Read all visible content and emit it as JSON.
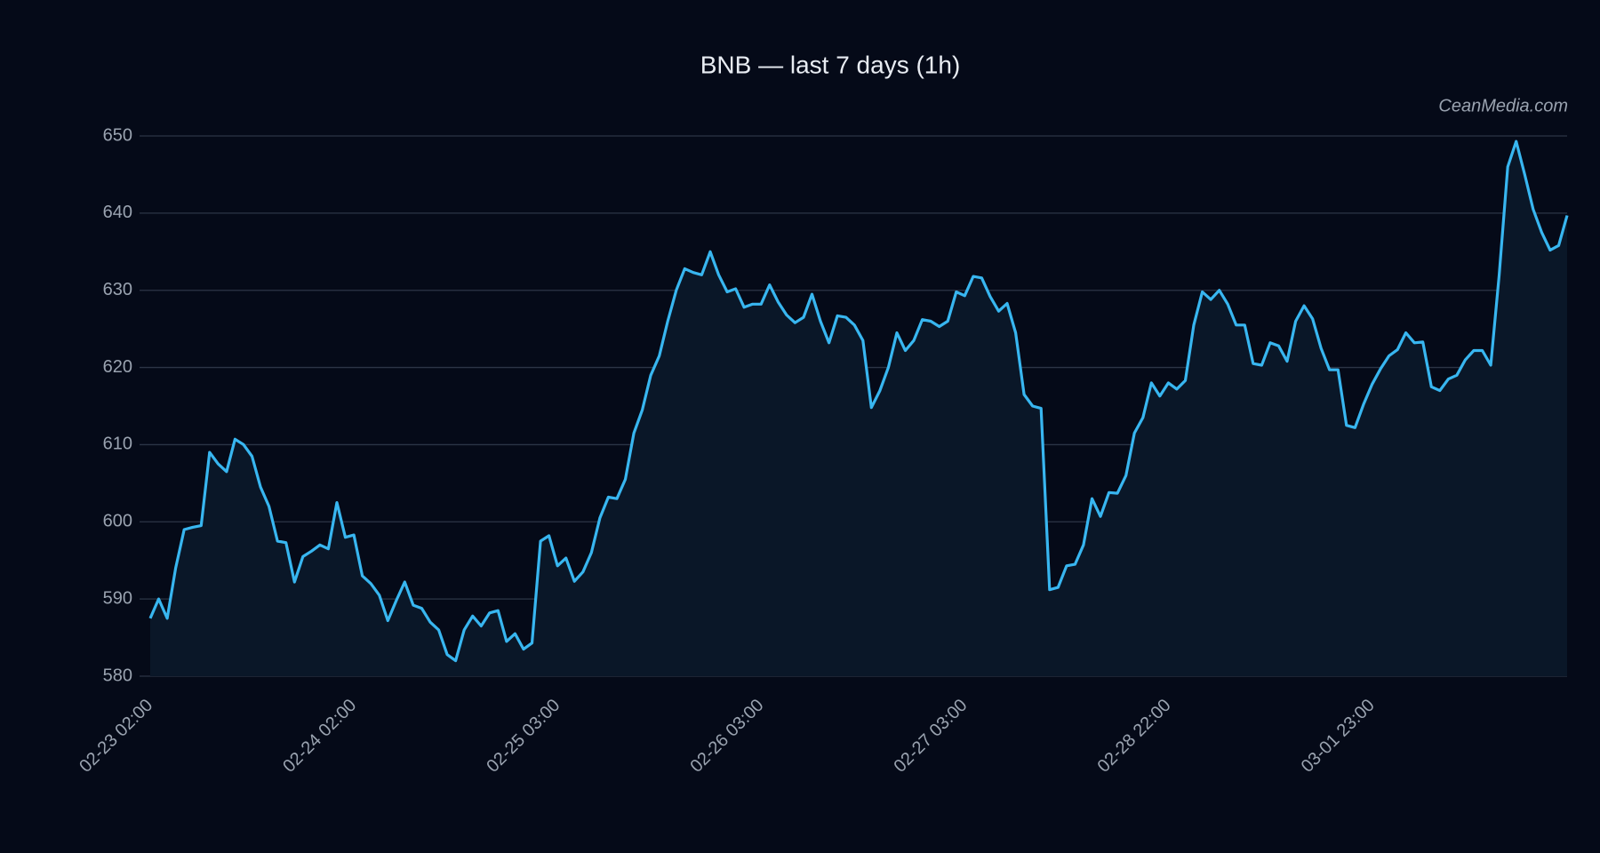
{
  "chart_data": {
    "type": "line",
    "title": "BNB — last 7 days (1h)",
    "watermark": "CeanMedia.com",
    "categories": [
      "02-23 02:00",
      null,
      null,
      null,
      null,
      null,
      null,
      null,
      null,
      null,
      null,
      null,
      null,
      null,
      null,
      null,
      null,
      null,
      null,
      null,
      null,
      null,
      null,
      null,
      "02-24 02:00",
      null,
      null,
      null,
      null,
      null,
      null,
      null,
      null,
      null,
      null,
      null,
      null,
      null,
      null,
      null,
      null,
      null,
      null,
      null,
      null,
      null,
      null,
      null,
      "02-25 03:00",
      null,
      null,
      null,
      null,
      null,
      null,
      null,
      null,
      null,
      null,
      null,
      null,
      null,
      null,
      null,
      null,
      null,
      null,
      null,
      null,
      null,
      null,
      null,
      "02-26 03:00",
      null,
      null,
      null,
      null,
      null,
      null,
      null,
      null,
      null,
      null,
      null,
      null,
      null,
      null,
      null,
      null,
      null,
      null,
      null,
      null,
      null,
      null,
      null,
      "02-27 03:00",
      null,
      null,
      null,
      null,
      null,
      null,
      null,
      null,
      null,
      null,
      null,
      null,
      null,
      null,
      null,
      null,
      null,
      null,
      null,
      null,
      null,
      null,
      null,
      "02-28 22:00",
      null,
      null,
      null,
      null,
      null,
      null,
      null,
      null,
      null,
      null,
      null,
      null,
      null,
      null,
      null,
      null,
      null,
      null,
      null,
      null,
      null,
      null,
      null,
      "03-01 23:00",
      null,
      null,
      null,
      null,
      null,
      null,
      null,
      null,
      null,
      null,
      null,
      null,
      null,
      null,
      null,
      null,
      null,
      null,
      null,
      null,
      null,
      null,
      null
    ],
    "series": [
      {
        "name": "BNB",
        "color": "#38b6f0",
        "fill": "#0a1728",
        "values": [
          587.5,
          590,
          587.5,
          594,
          599,
          599.3,
          599.5,
          609,
          607.5,
          606.5,
          610.7,
          610,
          608.5,
          604.5,
          602,
          597.5,
          597.3,
          592.2,
          595.5,
          596.2,
          597,
          596.5,
          602.5,
          598,
          598.3,
          593,
          592,
          590.5,
          587.2,
          589.8,
          592.2,
          589.2,
          588.8,
          587,
          586,
          582.8,
          582,
          586,
          587.8,
          586.5,
          588.2,
          588.5,
          584.5,
          585.5,
          583.5,
          584.3,
          597.5,
          598.2,
          594.3,
          595.3,
          592.3,
          593.5,
          596,
          600.5,
          603.2,
          603,
          605.5,
          611.5,
          614.5,
          619,
          621.5,
          626,
          630,
          632.8,
          632.3,
          632,
          635,
          632,
          629.8,
          630.2,
          627.8,
          628.2,
          628.2,
          630.7,
          628.5,
          626.8,
          625.8,
          626.5,
          629.5,
          626,
          623.2,
          626.7,
          626.5,
          625.5,
          623.5,
          614.8,
          617,
          620,
          624.5,
          622.2,
          623.5,
          626.2,
          626,
          625.3,
          626,
          629.8,
          629.3,
          631.8,
          631.6,
          629.2,
          627.3,
          628.3,
          624.5,
          616.5,
          615,
          614.7,
          591.2,
          591.5,
          594.3,
          594.5,
          597,
          603,
          600.7,
          603.8,
          603.7,
          606,
          611.5,
          613.5,
          618,
          616.3,
          618,
          617.2,
          618.3,
          625.5,
          629.8,
          628.8,
          630,
          628.2,
          625.5,
          625.5,
          620.5,
          620.3,
          623.2,
          622.8,
          620.8,
          626,
          628,
          626.3,
          622.5,
          619.7,
          619.7,
          612.5,
          612.2,
          615.2,
          617.8,
          619.8,
          621.5,
          622.3,
          624.5,
          623.2,
          623.3,
          617.5,
          617,
          618.5,
          619,
          621,
          622.2,
          622.2,
          620.3,
          632,
          646,
          649.3,
          645,
          640.5,
          637.5,
          635.2,
          635.8,
          639.7
        ]
      }
    ],
    "ylim": [
      580,
      650
    ],
    "yticks": [
      580,
      590,
      600,
      610,
      620,
      630,
      640,
      650
    ],
    "grid": true
  }
}
